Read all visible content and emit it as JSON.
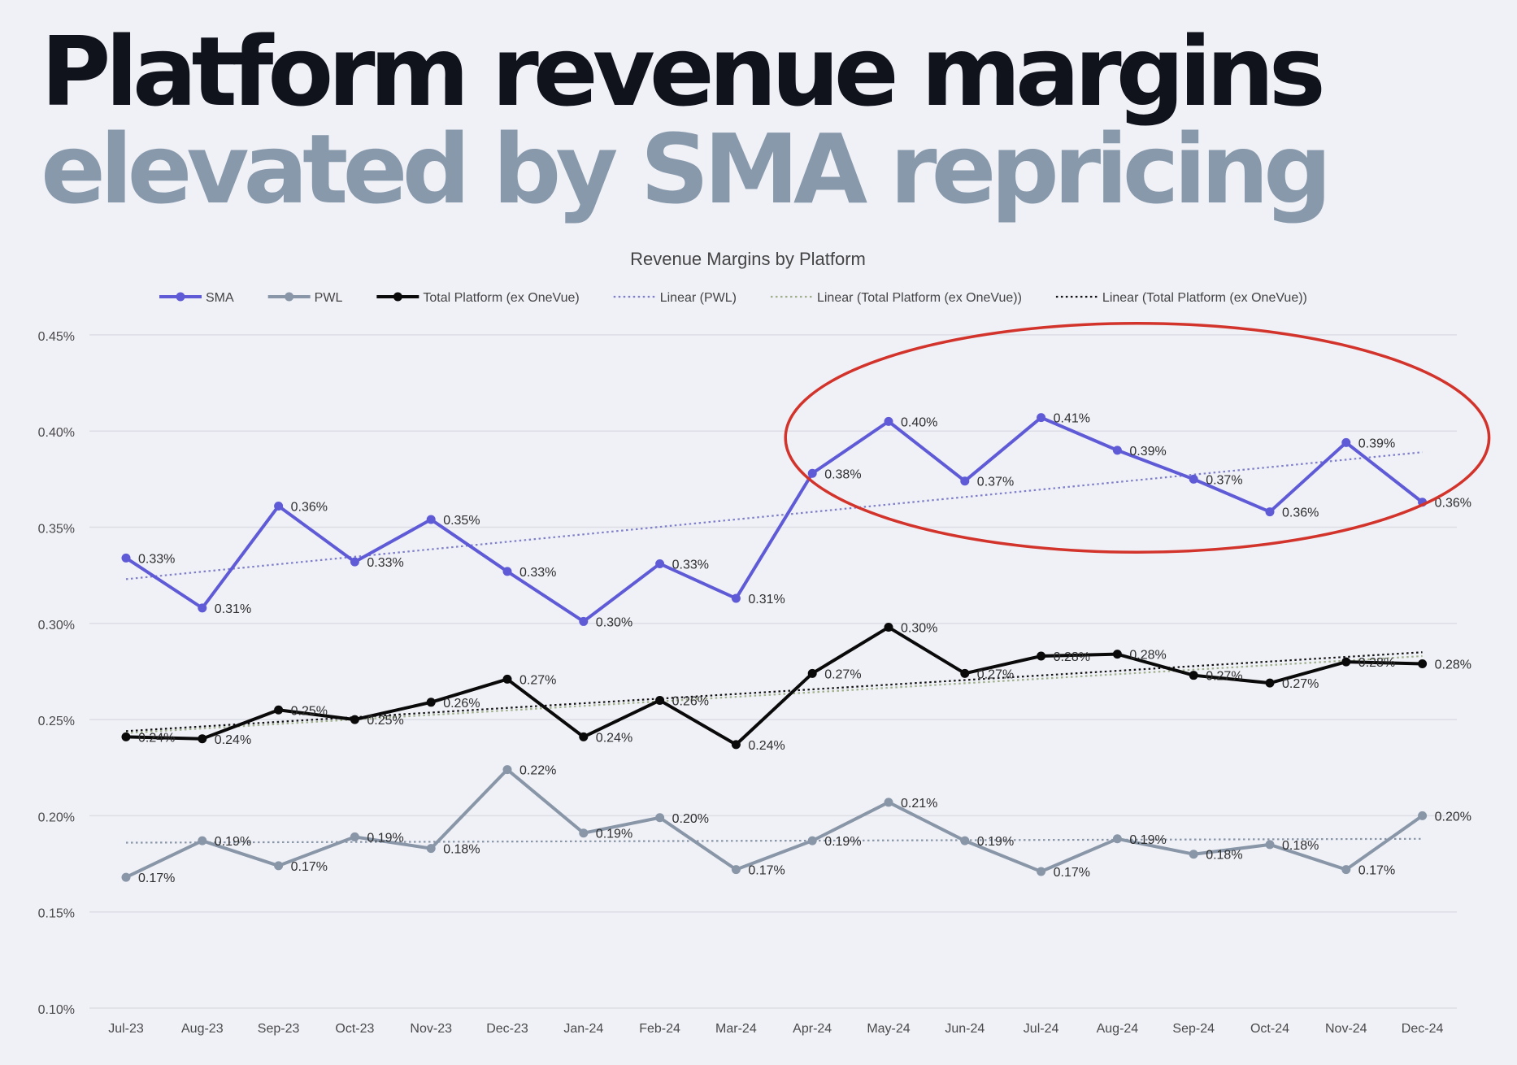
{
  "headline": {
    "line1": "Platform revenue margins",
    "line2": "elevated by SMA repricing"
  },
  "colors": {
    "background": "#f0f1f7",
    "headline_dark": "#10121c",
    "headline_muted": "#8899ab",
    "sma": "#5f5bd6",
    "pwl": "#8896a7",
    "total": "#0a0a0a",
    "linear_pwl": "#7f7fc8",
    "linear_total_green": "#9fb08a",
    "linear_total_black": "#111111",
    "highlight_ellipse": "#d2332b",
    "grid": "#dcdde5",
    "axis_text": "#4a4a4a"
  },
  "chart_data": {
    "type": "line",
    "title": "Revenue Margins by Platform",
    "xlabel": "",
    "ylabel": "",
    "ylim": [
      0.1,
      0.45
    ],
    "yticks": [
      "0.10%",
      "0.15%",
      "0.20%",
      "0.25%",
      "0.30%",
      "0.35%",
      "0.40%",
      "0.45%"
    ],
    "ytick_values": [
      0.1,
      0.15,
      0.2,
      0.25,
      0.3,
      0.35,
      0.4,
      0.45
    ],
    "grid": true,
    "legend_position": "top",
    "categories": [
      "Jul-23",
      "Aug-23",
      "Sep-23",
      "Oct-23",
      "Nov-23",
      "Dec-23",
      "Jan-24",
      "Feb-24",
      "Mar-24",
      "Apr-24",
      "May-24",
      "Jun-24",
      "Jul-24",
      "Aug-24",
      "Sep-24",
      "Oct-24",
      "Nov-24",
      "Dec-24"
    ],
    "series": [
      {
        "name": "SMA",
        "key": "sma",
        "values": [
          0.334,
          0.308,
          0.361,
          0.332,
          0.354,
          0.327,
          0.301,
          0.331,
          0.313,
          0.378,
          0.405,
          0.374,
          0.407,
          0.39,
          0.375,
          0.358,
          0.394,
          0.363
        ],
        "labels": [
          "0.33%",
          "0.31%",
          "0.36%",
          "0.33%",
          "0.35%",
          "0.33%",
          "0.30%",
          "0.33%",
          "0.31%",
          "0.38%",
          "0.40%",
          "0.37%",
          "0.41%",
          "0.39%",
          "0.37%",
          "0.36%",
          "0.39%",
          "0.36%"
        ]
      },
      {
        "name": "PWL",
        "key": "pwl",
        "values": [
          0.168,
          0.187,
          0.174,
          0.189,
          0.183,
          0.224,
          0.191,
          0.199,
          0.172,
          0.187,
          0.207,
          0.187,
          0.171,
          0.188,
          0.18,
          0.185,
          0.172,
          0.2
        ],
        "labels": [
          "0.17%",
          "0.19%",
          "0.17%",
          "0.19%",
          "0.18%",
          "0.22%",
          "0.19%",
          "0.20%",
          "0.17%",
          "0.19%",
          "0.21%",
          "0.19%",
          "0.17%",
          "0.19%",
          "0.18%",
          "0.18%",
          "0.17%",
          "0.20%"
        ]
      },
      {
        "name": "Total Platform (ex OneVue)",
        "key": "total",
        "values": [
          0.241,
          0.24,
          0.255,
          0.25,
          0.259,
          0.271,
          0.241,
          0.26,
          0.237,
          0.274,
          0.298,
          0.274,
          0.283,
          0.284,
          0.273,
          0.269,
          0.28,
          0.279
        ],
        "labels": [
          "0.24%",
          "0.24%",
          "0.25%",
          "0.25%",
          "0.26%",
          "0.27%",
          "0.24%",
          "0.26%",
          "0.24%",
          "0.27%",
          "0.30%",
          "0.27%",
          "0.28%",
          "0.28%",
          "0.27%",
          "0.27%",
          "0.28%",
          "0.28%"
        ]
      }
    ],
    "trendlines": [
      {
        "name": "Linear (PWL)",
        "legend_key": "linear_pwl",
        "color_key": "linear_pwl",
        "applies_to": "sma",
        "start": 0.323,
        "end": 0.389
      },
      {
        "name": "Linear (PWL)",
        "legend_key": null,
        "color_key": "pwl",
        "applies_to": "pwl",
        "start": 0.186,
        "end": 0.188
      },
      {
        "name": "Linear (Total Platform (ex OneVue))",
        "legend_key": "linear_total_green",
        "color_key": "linear_total_green",
        "applies_to": "total",
        "start": 0.243,
        "end": 0.283
      },
      {
        "name": "Linear (Total Platform (ex OneVue))",
        "legend_key": "linear_total_black",
        "color_key": "linear_total_black",
        "applies_to": "total",
        "start": 0.244,
        "end": 0.285
      }
    ],
    "legend": [
      {
        "label": "SMA",
        "style": "line-marker",
        "color_key": "sma"
      },
      {
        "label": "PWL",
        "style": "line-marker",
        "color_key": "pwl"
      },
      {
        "label": "Total Platform (ex OneVue)",
        "style": "line-marker",
        "color_key": "total"
      },
      {
        "label": "Linear (PWL)",
        "style": "dotted",
        "color_key": "linear_pwl"
      },
      {
        "label": "Linear (Total Platform (ex OneVue))",
        "style": "dotted",
        "color_key": "linear_total_green"
      },
      {
        "label": "Linear (Total Platform (ex OneVue))",
        "style": "dotted",
        "color_key": "linear_total_black"
      }
    ],
    "annotations": [
      {
        "type": "ellipse",
        "color_key": "highlight_ellipse",
        "from_category": "Apr-24",
        "to_category": "Dec-24",
        "y_low": 0.337,
        "y_high": 0.456,
        "meaning": "highlighted SMA repricing period"
      }
    ]
  }
}
